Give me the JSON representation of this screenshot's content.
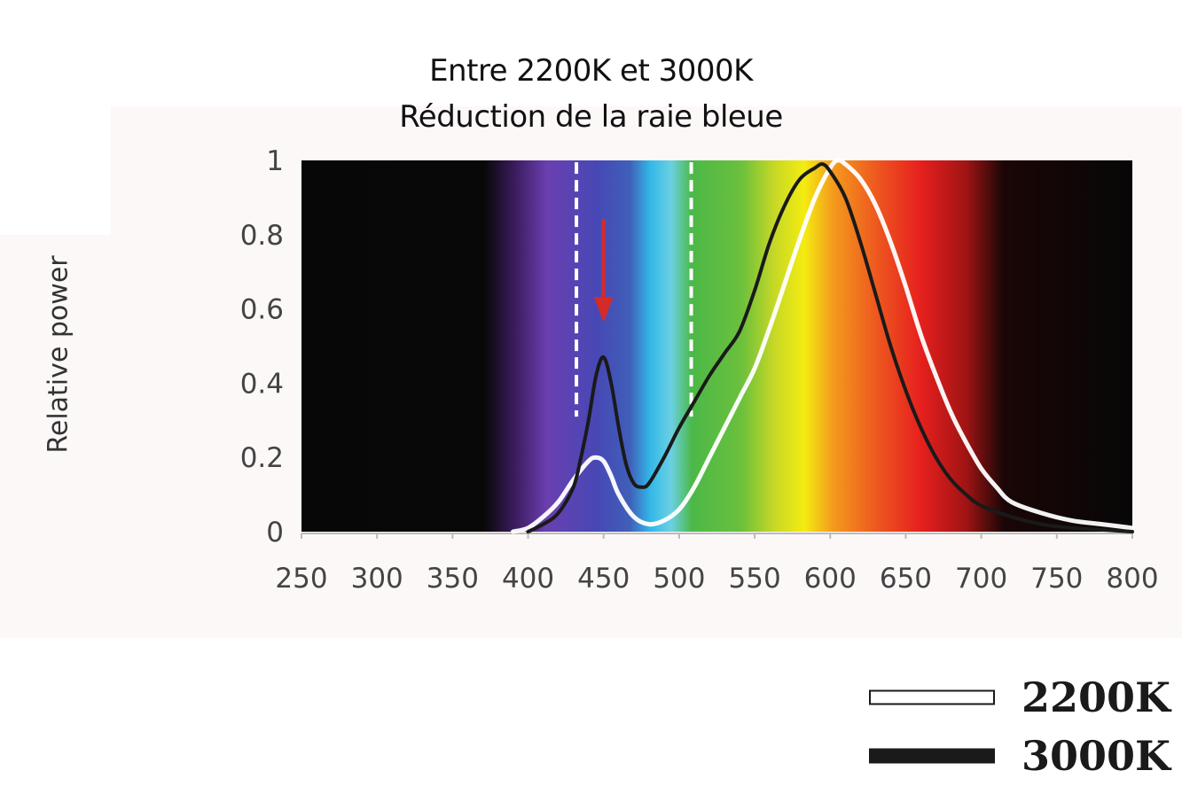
{
  "title_line1": "Entre 2200K et 3000K",
  "title_line2": "Réduction de la raie bleue",
  "chart_data": {
    "type": "line",
    "xlabel": "",
    "ylabel": "Relative power",
    "xlim": [
      250,
      800
    ],
    "ylim": [
      0,
      1
    ],
    "x_ticks": [
      "250",
      "300",
      "350",
      "400",
      "450",
      "500",
      "550",
      "600",
      "650",
      "700",
      "750",
      "800"
    ],
    "y_ticks": [
      "0",
      "0.2",
      "0.4",
      "0.6",
      "0.8",
      "1"
    ],
    "background": "visible spectrum gradient",
    "reference_lines_x": [
      432,
      508
    ],
    "annotation_arrow_at_x": 450,
    "series": [
      {
        "name": "2200K",
        "color": "#ffffff",
        "x": [
          390,
          400,
          410,
          420,
          430,
          440,
          445,
          450,
          455,
          460,
          470,
          480,
          490,
          500,
          510,
          520,
          530,
          540,
          550,
          560,
          570,
          580,
          590,
          600,
          605,
          610,
          620,
          630,
          640,
          650,
          660,
          670,
          680,
          690,
          700,
          710,
          720,
          740,
          760,
          780,
          800
        ],
        "y": [
          0.0,
          0.01,
          0.04,
          0.08,
          0.14,
          0.19,
          0.2,
          0.19,
          0.15,
          0.1,
          0.04,
          0.02,
          0.03,
          0.06,
          0.12,
          0.2,
          0.28,
          0.36,
          0.44,
          0.55,
          0.67,
          0.79,
          0.9,
          0.98,
          1.0,
          0.99,
          0.95,
          0.88,
          0.78,
          0.66,
          0.53,
          0.42,
          0.32,
          0.24,
          0.17,
          0.12,
          0.08,
          0.05,
          0.03,
          0.02,
          0.01
        ]
      },
      {
        "name": "3000K",
        "color": "#1a1a1a",
        "x": [
          400,
          410,
          420,
          430,
          435,
          440,
          445,
          450,
          455,
          460,
          465,
          470,
          475,
          480,
          490,
          500,
          510,
          520,
          530,
          540,
          550,
          560,
          570,
          580,
          590,
          595,
          600,
          610,
          620,
          630,
          640,
          650,
          660,
          670,
          680,
          690,
          700,
          720,
          740,
          760,
          780,
          800
        ],
        "y": [
          0.0,
          0.02,
          0.05,
          0.12,
          0.2,
          0.3,
          0.42,
          0.47,
          0.4,
          0.28,
          0.18,
          0.13,
          0.12,
          0.13,
          0.2,
          0.28,
          0.35,
          0.42,
          0.48,
          0.54,
          0.65,
          0.78,
          0.88,
          0.95,
          0.98,
          0.99,
          0.97,
          0.9,
          0.78,
          0.64,
          0.5,
          0.38,
          0.28,
          0.2,
          0.14,
          0.1,
          0.07,
          0.04,
          0.02,
          0.01,
          0.005,
          0.0
        ]
      }
    ]
  },
  "legend": {
    "items": [
      {
        "label": "2200K",
        "swatch": "white"
      },
      {
        "label": "3000K",
        "swatch": "black"
      }
    ]
  }
}
